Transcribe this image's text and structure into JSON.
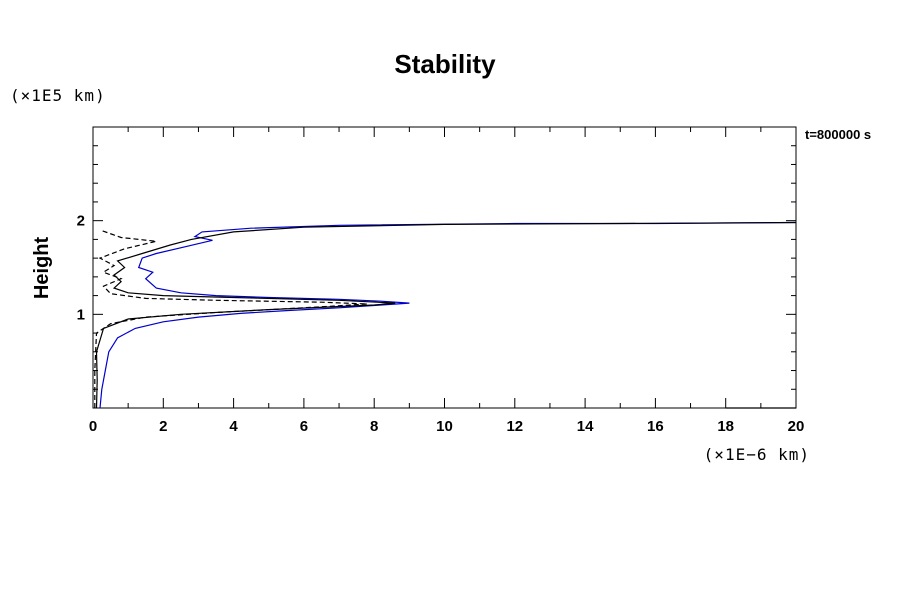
{
  "chart_data": {
    "type": "line",
    "title": "Stability",
    "ylabel": "Height",
    "xlabel": "",
    "x_unit": "(×1E−6 km)",
    "y_unit": "(×1E5 km)",
    "time_label": "t=800000 s",
    "xlim": [
      0,
      20
    ],
    "ylim": [
      0,
      3
    ],
    "x_ticks": [
      0,
      2,
      4,
      6,
      8,
      10,
      12,
      14,
      16,
      18,
      20
    ],
    "x_tick_labels": [
      "0",
      "2",
      "4",
      "6",
      "8",
      "10",
      "12",
      "14",
      "16",
      "18",
      "20"
    ],
    "y_ticks": [
      1,
      2
    ],
    "y_tick_labels": [
      "1",
      "2"
    ],
    "grid": false,
    "legend": "none",
    "series": [
      {
        "style": "solid",
        "color": "#0000cc",
        "points": [
          [
            0.2,
            0.0
          ],
          [
            0.25,
            0.2
          ],
          [
            0.35,
            0.4
          ],
          [
            0.45,
            0.6
          ],
          [
            0.7,
            0.75
          ],
          [
            1.2,
            0.85
          ],
          [
            2.0,
            0.92
          ],
          [
            3.0,
            0.97
          ],
          [
            4.2,
            1.01
          ],
          [
            5.5,
            1.04
          ],
          [
            7.0,
            1.07
          ],
          [
            8.2,
            1.1
          ],
          [
            9.0,
            1.12
          ],
          [
            8.2,
            1.14
          ],
          [
            7.0,
            1.16
          ],
          [
            5.0,
            1.18
          ],
          [
            3.5,
            1.2
          ],
          [
            2.5,
            1.23
          ],
          [
            1.8,
            1.28
          ],
          [
            1.5,
            1.38
          ],
          [
            1.7,
            1.45
          ],
          [
            1.3,
            1.5
          ],
          [
            1.4,
            1.6
          ],
          [
            1.8,
            1.65
          ],
          [
            2.6,
            1.72
          ],
          [
            3.4,
            1.79
          ],
          [
            2.9,
            1.83
          ],
          [
            3.1,
            1.88
          ],
          [
            4.5,
            1.92
          ],
          [
            7.0,
            1.95
          ],
          [
            12.0,
            1.97
          ],
          [
            16.0,
            1.97
          ],
          [
            20.0,
            1.98
          ]
        ]
      },
      {
        "style": "solid",
        "color": "#000000",
        "points": [
          [
            0.1,
            0.0
          ],
          [
            0.12,
            0.3
          ],
          [
            0.1,
            0.6
          ],
          [
            0.3,
            0.85
          ],
          [
            1.0,
            0.95
          ],
          [
            2.5,
            1.0
          ],
          [
            5.0,
            1.05
          ],
          [
            8.0,
            1.1
          ],
          [
            8.6,
            1.12
          ],
          [
            7.0,
            1.15
          ],
          [
            4.0,
            1.18
          ],
          [
            2.0,
            1.2
          ],
          [
            1.0,
            1.23
          ],
          [
            0.6,
            1.28
          ],
          [
            0.8,
            1.35
          ],
          [
            0.6,
            1.42
          ],
          [
            0.9,
            1.5
          ],
          [
            0.7,
            1.57
          ],
          [
            1.4,
            1.65
          ],
          [
            2.2,
            1.74
          ],
          [
            2.8,
            1.8
          ],
          [
            4.0,
            1.88
          ],
          [
            6.0,
            1.93
          ],
          [
            10.0,
            1.96
          ],
          [
            15.0,
            1.97
          ],
          [
            20.0,
            1.98
          ]
        ]
      },
      {
        "style": "dashed",
        "color": "#000000",
        "points": [
          [
            0.05,
            0.0
          ],
          [
            0.05,
            0.4
          ],
          [
            0.1,
            0.8
          ],
          [
            0.5,
            0.9
          ],
          [
            1.5,
            0.97
          ],
          [
            3.5,
            1.02
          ],
          [
            6.5,
            1.08
          ],
          [
            7.8,
            1.11
          ],
          [
            6.5,
            1.13
          ],
          [
            3.5,
            1.15
          ],
          [
            1.5,
            1.17
          ],
          [
            0.5,
            1.22
          ],
          [
            0.3,
            1.3
          ],
          [
            0.8,
            1.38
          ],
          [
            0.3,
            1.45
          ],
          [
            0.6,
            1.52
          ],
          [
            0.2,
            1.6
          ],
          [
            0.9,
            1.7
          ],
          [
            1.8,
            1.78
          ],
          [
            0.8,
            1.82
          ],
          [
            0.2,
            1.9
          ]
        ]
      },
      {
        "style": "solid",
        "color": "#000000",
        "points": [
          [
            18.0,
            0.0
          ],
          [
            20.0,
            0.0
          ]
        ]
      }
    ]
  }
}
